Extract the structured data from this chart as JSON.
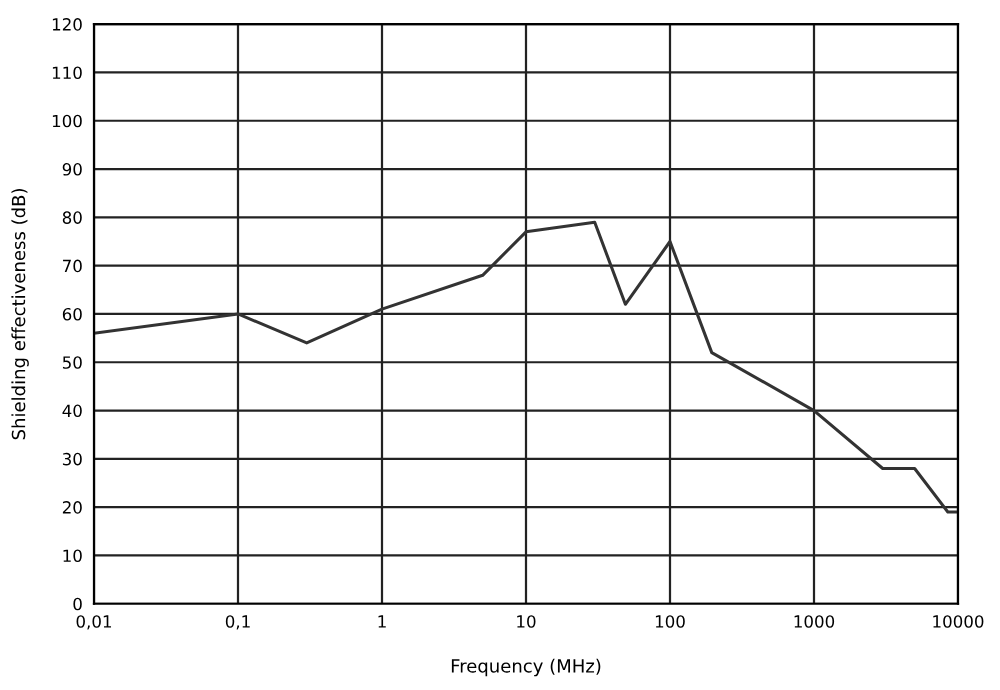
{
  "chart_data": {
    "type": "line",
    "xlabel": "Frequency (MHz)",
    "ylabel": "Shielding effectiveness (dB)",
    "x": [
      0.01,
      0.1,
      0.3,
      1,
      5,
      10,
      30,
      49,
      100,
      195,
      1000,
      3000,
      5000,
      8500,
      10000
    ],
    "series": [
      {
        "color": "#333333",
        "values": [
          56,
          60,
          54,
          61,
          68,
          77,
          79,
          62,
          75,
          52,
          40,
          28,
          28,
          19,
          19
        ]
      }
    ],
    "log": "x",
    "xlim": [
      0.01,
      10000
    ],
    "ylim": [
      0,
      120
    ],
    "xticks": [
      {
        "value": 0.01,
        "label": "0,01"
      },
      {
        "value": 0.1,
        "label": "0,1"
      },
      1,
      10,
      100,
      1000,
      10000
    ],
    "yticks": [
      0,
      10,
      20,
      30,
      40,
      50,
      60,
      70,
      80,
      90,
      100,
      110,
      120
    ],
    "grid": true,
    "legend": false,
    "marker": "none",
    "line_style": "solid"
  }
}
